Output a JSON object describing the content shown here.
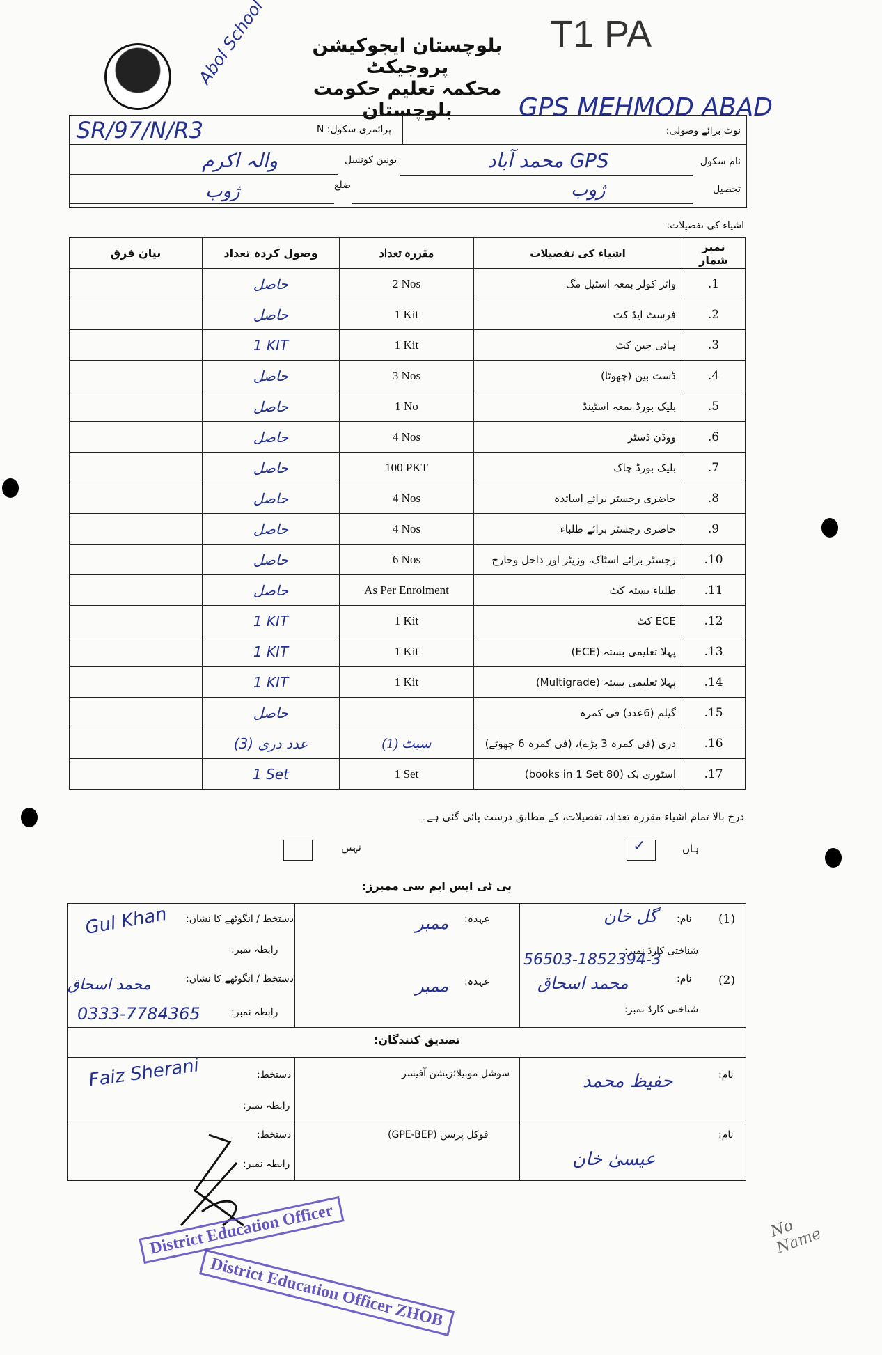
{
  "header": {
    "logo": "Government of Balochistan seal",
    "title_line1": "بلوچستان ایجوکیشن پروجیکٹ",
    "title_line2": "محکمہ تعلیم حکومت بلوچستان",
    "hw_top_left": "Abol School",
    "hw_top_right": "T1 PA",
    "hw_school": "GPS MEHMOD ABAD"
  },
  "info": {
    "note_label": "نوٹ برائے وصولی:",
    "primary_school_label": "پرائمری سکول: N",
    "code_hw": "SR/97/N/R3",
    "school_name_label": "نام سکول",
    "school_name_hw": "GPS محمد آباد",
    "union_council_label": "یونین کونسل",
    "union_council_hw": "والہ اکرم",
    "tehsil_label": "تحصیل",
    "tehsil_hw": "ژوب",
    "district_label": "ضلع",
    "district_hw": "ژوب"
  },
  "items_label": "اشیاء کی تفصیلات:",
  "table": {
    "headers": {
      "no": "نمبر شمار",
      "item": "اشیاء کی تفصیلات",
      "qty": "مقررہ تعداد",
      "received": "وصول کردہ تعداد",
      "diff": "بیان فرق"
    },
    "rows": [
      {
        "no": ".1",
        "item": "واٹر کولر بمعہ اسٹیل مگ",
        "qty": "2 Nos",
        "received": "حاصل"
      },
      {
        "no": ".2",
        "item": "فرسٹ ایڈ کٹ",
        "qty": "1 Kit",
        "received": "حاصل"
      },
      {
        "no": ".3",
        "item": "ہائی جین کٹ",
        "qty": "1 Kit",
        "received": "1 KIT"
      },
      {
        "no": ".4",
        "item": "ڈسٹ بین (چھوٹا)",
        "qty": "3 Nos",
        "received": "حاصل"
      },
      {
        "no": ".5",
        "item": "بلیک بورڈ بمعہ اسٹینڈ",
        "qty": "1 No",
        "received": "حاصل"
      },
      {
        "no": ".6",
        "item": "ووڈن ڈسٹر",
        "qty": "4 Nos",
        "received": "حاصل"
      },
      {
        "no": ".7",
        "item": "بلیک بورڈ چاک",
        "qty": "100 PKT",
        "received": "حاصل"
      },
      {
        "no": ".8",
        "item": "حاضری رجسٹر برائے اساتذہ",
        "qty": "4 Nos",
        "received": "حاصل"
      },
      {
        "no": ".9",
        "item": "حاضری رجسٹر برائے طلباء",
        "qty": "4 Nos",
        "received": "حاصل"
      },
      {
        "no": ".10",
        "item": "رجسٹر برائے اسٹاک، وزیٹر اور داخل وخارج",
        "qty": "6 Nos",
        "received": "حاصل"
      },
      {
        "no": ".11",
        "item": "طلباء بستہ کٹ",
        "qty": "As Per Enrolment",
        "received": "حاصل"
      },
      {
        "no": ".12",
        "item": "ECE کٹ",
        "qty": "1 Kit",
        "received": "1 KIT"
      },
      {
        "no": ".13",
        "item": "پہلا تعلیمی بستہ (ECE)",
        "qty": "1 Kit",
        "received": "1 KIT"
      },
      {
        "no": ".14",
        "item": "پہلا تعلیمی بستہ (Multigrade)",
        "qty": "1 Kit",
        "received": "1 KIT"
      },
      {
        "no": ".15",
        "item": "گیلم (6عدد) فی کمرہ",
        "qty": "",
        "received": "حاصل"
      },
      {
        "no": ".16",
        "item": "دری (فی کمرہ 3 بڑے)، (فی کمرہ 6 چھوٹے)",
        "qty": "(1) سیٹ",
        "received": "(3) عدد دری"
      },
      {
        "no": ".17",
        "item": "اسٹوری بک (80 books in 1 Set)",
        "qty": "1 Set",
        "received": "1 Set"
      }
    ]
  },
  "confirm": {
    "statement": "درج بالا تمام اشیاء مقررہ تعداد، تفصیلات، کے مطابق درست پائی گئی ہے۔",
    "yes_label": "ہاں",
    "no_label": "نہیں",
    "yes_checked": true,
    "no_checked": false
  },
  "members": {
    "heading": "پی ٹی ایس ایم سی ممبرز:",
    "name_label": "نام:",
    "cnic_label": "شناختی کارڈ نمبر:",
    "post_label": "عہدہ:",
    "sign_label": "دستخط / انگوٹھے کا نشان:",
    "contact_label": "رابطہ نمبر:",
    "list": [
      {
        "index": "(1)",
        "name_hw": "گل خان",
        "cnic_hw": "56503-1852394-3",
        "post_hw": "ممبر",
        "sign_hw": "Gul Khan",
        "contact_hw": ""
      },
      {
        "index": "(2)",
        "name_hw": "محمد اسحاق",
        "cnic_hw": "",
        "post_hw": "ممبر",
        "sign_hw": "محمد اسحاق",
        "contact_hw": "0333-7784365"
      }
    ]
  },
  "verifiers": {
    "heading": "تصدیق کنندگان:",
    "name_label": "نام:",
    "sign_label": "دستخط:",
    "contact_label": "رابطہ نمبر:",
    "list": [
      {
        "role": "سوشل موبیلائزیشن آفیسر",
        "name_hw": "حفیظ محمد",
        "sign_hw": "Faiz Sherani"
      },
      {
        "role": "فوکل پرسن (GPE-BEP)",
        "name_hw": "عیسیٰ خان",
        "sign_hw": ""
      }
    ]
  },
  "stamps": {
    "stamp1": "District Education Officer",
    "stamp2": "District Education Officer ZHOB"
  },
  "note_hw": "No Name",
  "colors": {
    "ink": "#23308f",
    "stamp": "#4a3ab5"
  }
}
